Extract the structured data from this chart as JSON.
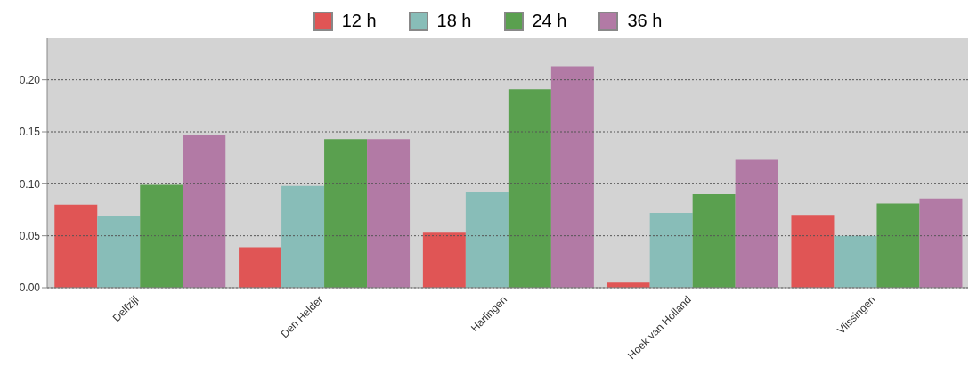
{
  "chart_data": {
    "type": "bar",
    "categories": [
      "Delfzijl",
      "Den Helder",
      "Harlingen",
      "Hoek van Holland",
      "Vlissingen"
    ],
    "series": [
      {
        "name": "12 h",
        "color": "#e05555",
        "values": [
          0.08,
          0.039,
          0.053,
          0.005,
          0.07
        ]
      },
      {
        "name": "18 h",
        "color": "#88bdb8",
        "values": [
          0.069,
          0.098,
          0.092,
          0.072,
          0.05
        ]
      },
      {
        "name": "24 h",
        "color": "#5aa04f",
        "values": [
          0.099,
          0.143,
          0.191,
          0.09,
          0.081
        ]
      },
      {
        "name": "36 h",
        "color": "#b27aa5",
        "values": [
          0.147,
          0.143,
          0.213,
          0.123,
          0.086
        ]
      }
    ],
    "ylim": [
      0,
      0.24
    ],
    "yticks": [
      {
        "value": 0,
        "label": "0.00"
      },
      {
        "value": 0.05,
        "label": "0.05"
      },
      {
        "value": 0.1,
        "label": "0.10"
      },
      {
        "value": 0.15,
        "label": "0.15"
      },
      {
        "value": 0.2,
        "label": "0.20"
      }
    ],
    "grid": "y",
    "legend": "top",
    "line_style": "dotted"
  }
}
